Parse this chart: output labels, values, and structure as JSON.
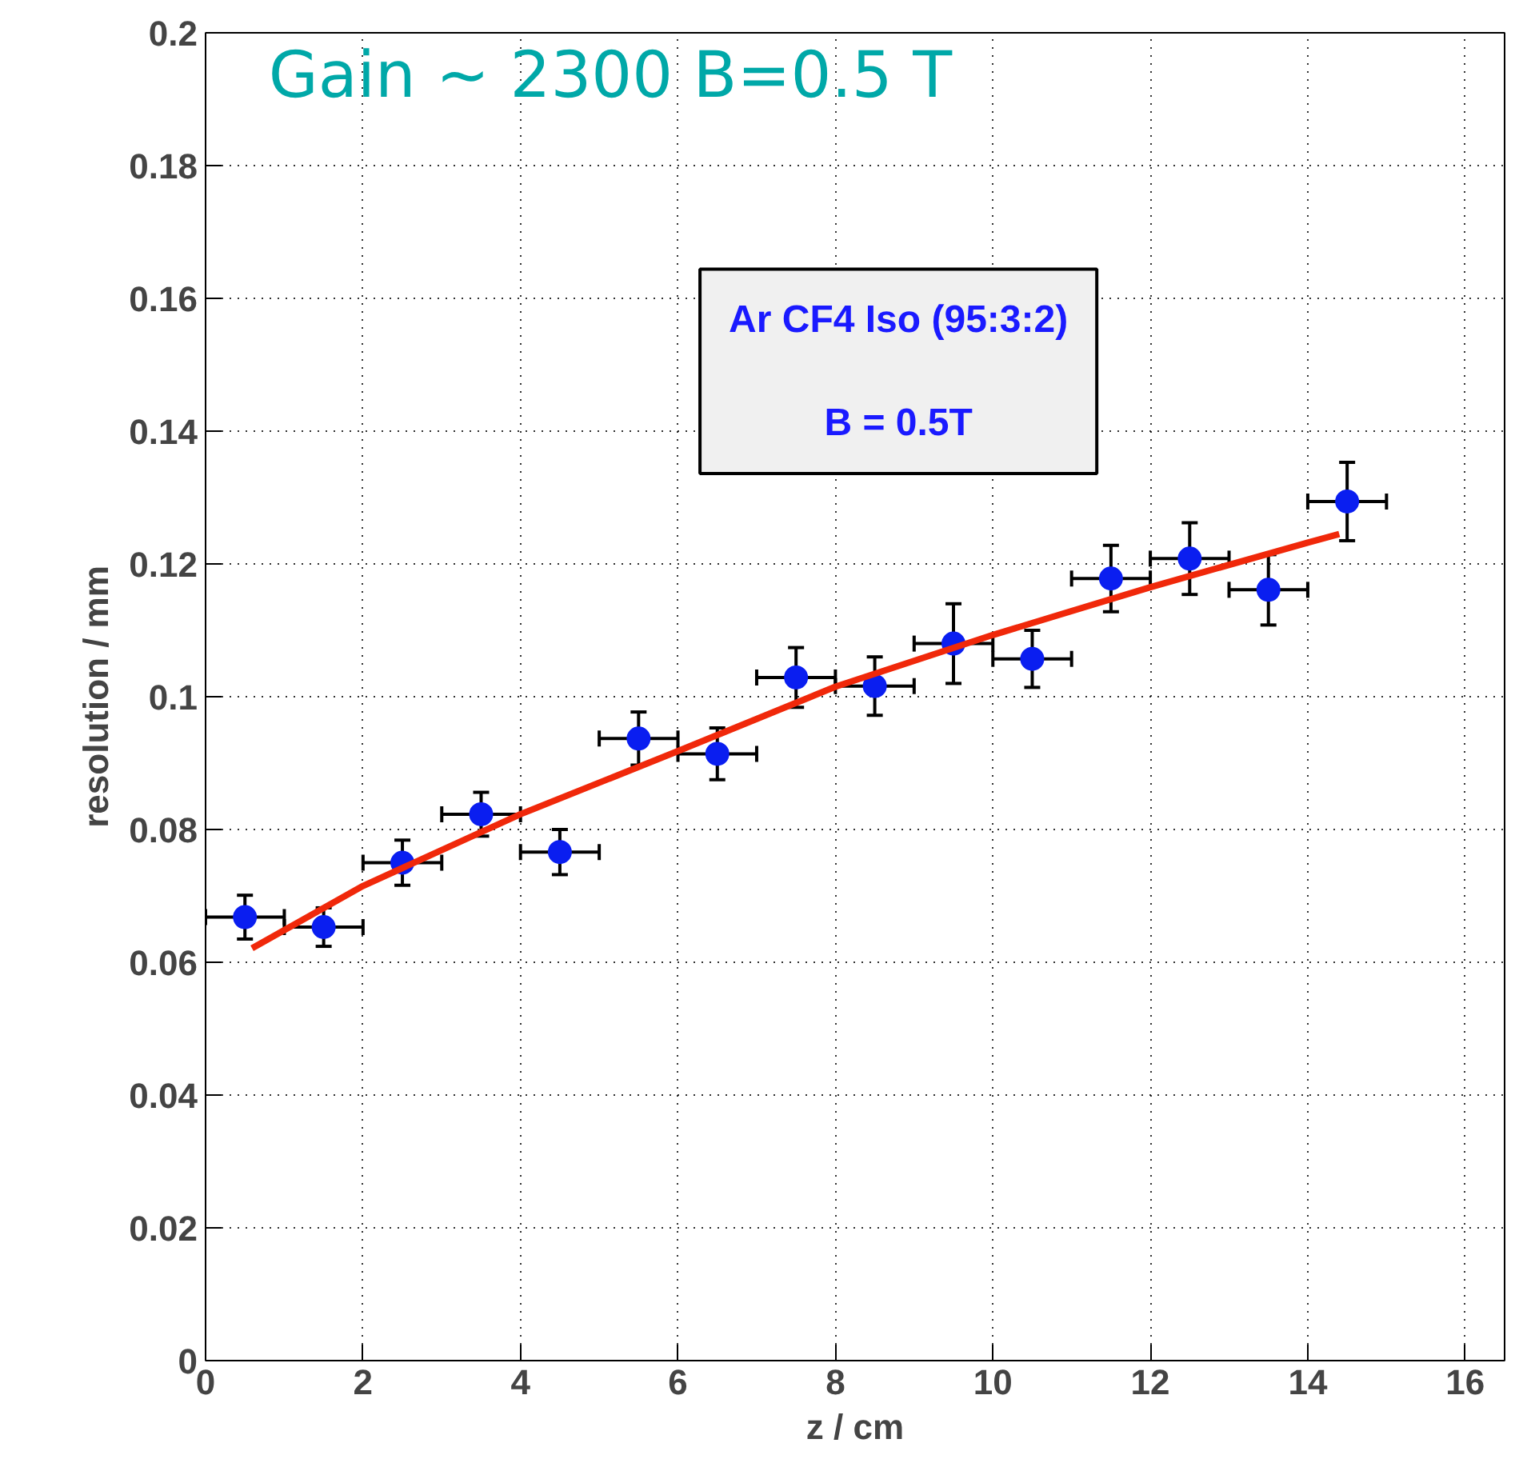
{
  "chart_data": {
    "type": "scatter",
    "xlabel": "z / cm",
    "ylabel": "resolution / mm",
    "annotations": [
      "Gain ~ 2300 B=0.5 T",
      "Ar CF4 Iso (95:3:2)",
      "B = 0.5T"
    ],
    "xlim": [
      0,
      16.5
    ],
    "ylim": [
      0,
      0.2
    ],
    "xticks": [
      0,
      2,
      4,
      6,
      8,
      10,
      12,
      14,
      16
    ],
    "yticks": [
      0,
      0.02,
      0.04,
      0.06,
      0.08,
      0.1,
      0.12,
      0.14,
      0.16,
      0.18,
      0.2
    ],
    "grid": true,
    "series": [
      {
        "marker": "circle",
        "color": "#0a1ef0",
        "x": [
          0.5,
          1.5,
          2.5,
          3.5,
          4.5,
          5.5,
          6.5,
          7.5,
          8.5,
          9.5,
          10.5,
          11.5,
          12.5,
          13.5,
          14.5
        ],
        "values": [
          0.0668,
          0.0653,
          0.075,
          0.0823,
          0.0766,
          0.0937,
          0.0914,
          0.1029,
          0.1016,
          0.108,
          0.1057,
          0.1178,
          0.1208,
          0.1161,
          0.1294
        ],
        "errors": [
          0.0033,
          0.0029,
          0.0034,
          0.0033,
          0.0034,
          0.004,
          0.0039,
          0.0045,
          0.0044,
          0.006,
          0.0043,
          0.005,
          0.0054,
          0.0053,
          0.0059
        ],
        "xerrors": [
          0.5,
          0.5,
          0.5,
          0.5,
          0.5,
          0.5,
          0.5,
          0.5,
          0.5,
          0.5,
          0.5,
          0.5,
          0.5,
          0.5,
          0.5
        ]
      },
      {
        "type": "line",
        "color": "#f0280a",
        "x": [
          0.59,
          2,
          4,
          6,
          8,
          10,
          12,
          14,
          14.4
        ],
        "values": [
          0.0621,
          0.0715,
          0.0823,
          0.0918,
          0.1015,
          0.1093,
          0.1165,
          0.1232,
          0.1245
        ]
      }
    ]
  }
}
